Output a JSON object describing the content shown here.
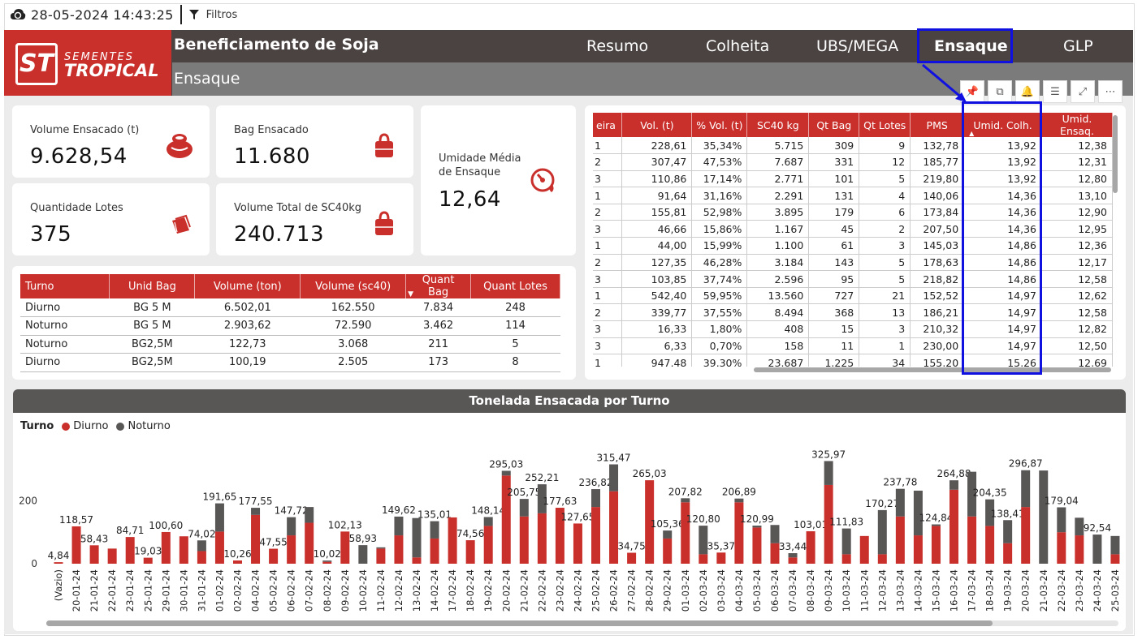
{
  "topbar": {
    "datetime": "28-05-2024 14:43:25",
    "filters_label": "Filtros"
  },
  "header": {
    "title": "Beneficiamento de Soja",
    "subtitle": "Ensaque",
    "logo_line1": "SEMENTES",
    "logo_line2": "TROPICAL",
    "logo_mark": "ST",
    "nav": [
      "Resumo",
      "Colheita",
      "UBS/MEGA",
      "Ensaque",
      "GLP"
    ],
    "active_nav": "Ensaque"
  },
  "kpis": {
    "volume_ensacado": {
      "label": "Volume Ensacado (t)",
      "value": "9.628,54"
    },
    "bag_ensacado": {
      "label": "Bag Ensacado",
      "value": "11.680"
    },
    "umidade_media": {
      "label": "Umidade Média de Ensaque",
      "value": "12,64"
    },
    "quantidade_lotes": {
      "label": "Quantidade Lotes",
      "value": "375"
    },
    "volume_total_sc40": {
      "label": "Volume Total de SC40kg",
      "value": "240.713"
    }
  },
  "turno_table": {
    "columns": [
      "Turno",
      "Unid Bag",
      "Volume (ton)",
      "Volume (sc40)",
      "Quant Bag",
      "Quant Lotes"
    ],
    "rows": [
      [
        "Diurno",
        "BG 5 M",
        "6.502,01",
        "162.550",
        "7.834",
        "248"
      ],
      [
        "Noturno",
        "BG 5 M",
        "2.903,62",
        "72.590",
        "3.462",
        "114"
      ],
      [
        "Noturno",
        "BG2,5M",
        "122,73",
        "3.068",
        "211",
        "5"
      ],
      [
        "Diurno",
        "BG2,5M",
        "100,19",
        "2.505",
        "173",
        "8"
      ]
    ]
  },
  "detail_table": {
    "columns": [
      "eira",
      "Vol. (t)",
      "% Vol. (t)",
      "SC40 kg",
      "Qt Bag",
      "Qt Lotes",
      "PMS",
      "Umid. Colh.",
      "Umid. Ensaq."
    ],
    "rows": [
      [
        "1",
        "228,61",
        "35,34%",
        "5.715",
        "309",
        "9",
        "132,78",
        "13,92",
        "12,38"
      ],
      [
        "2",
        "307,47",
        "47,53%",
        "7.687",
        "331",
        "12",
        "185,77",
        "13,92",
        "12,31"
      ],
      [
        "3",
        "110,86",
        "17,14%",
        "2.771",
        "101",
        "5",
        "219,80",
        "13,92",
        "12,80"
      ],
      [
        "1",
        "91,64",
        "31,16%",
        "2.291",
        "131",
        "4",
        "140,06",
        "14,36",
        "13,10"
      ],
      [
        "2",
        "155,81",
        "52,98%",
        "3.895",
        "179",
        "6",
        "173,84",
        "14,36",
        "12,90"
      ],
      [
        "3",
        "46,66",
        "15,86%",
        "1.167",
        "45",
        "2",
        "207,50",
        "14,36",
        "12,95"
      ],
      [
        "1",
        "44,00",
        "15,99%",
        "1.100",
        "61",
        "3",
        "145,03",
        "14,86",
        "12,36"
      ],
      [
        "2",
        "127,35",
        "46,28%",
        "3.184",
        "143",
        "5",
        "178,63",
        "14,86",
        "12,17"
      ],
      [
        "3",
        "103,85",
        "37,74%",
        "2.596",
        "95",
        "5",
        "218,82",
        "14,86",
        "12,58"
      ],
      [
        "1",
        "542,40",
        "59,95%",
        "13.560",
        "727",
        "21",
        "152,52",
        "14,97",
        "12,62"
      ],
      [
        "2",
        "339,77",
        "37,55%",
        "8.494",
        "368",
        "13",
        "186,21",
        "14,97",
        "12,58"
      ],
      [
        "3",
        "16,33",
        "1,80%",
        "408",
        "15",
        "3",
        "210,32",
        "14,97",
        "12,82"
      ],
      [
        "3",
        "6,33",
        "0,70%",
        "158",
        "11",
        "1",
        "230,00",
        "14,97",
        "12,50"
      ],
      [
        "1",
        "947,48",
        "39,30%",
        "23.687",
        "1.225",
        "34",
        "155,20",
        "15,26",
        "12,69"
      ]
    ]
  },
  "chart_title": "Tonelada Ensacada por Turno",
  "chart_data": {
    "type": "bar",
    "stacked": true,
    "legend_title": "Turno",
    "series_names": [
      "Diurno",
      "Noturno"
    ],
    "colors": {
      "Diurno": "#c9302c",
      "Noturno": "#595656"
    },
    "yticks": [
      0,
      200
    ],
    "ylim": [
      0,
      340
    ],
    "categories": [
      "(Vazio)",
      "20-01-24",
      "21-01-24",
      "22-01-24",
      "23-01-24",
      "25-01-24",
      "29-01-24",
      "30-01-24",
      "31-01-24",
      "01-02-24",
      "02-02-24",
      "04-02-24",
      "05-02-24",
      "06-02-24",
      "07-02-24",
      "08-02-24",
      "09-02-24",
      "10-02-24",
      "11-02-24",
      "12-02-24",
      "13-02-24",
      "14-02-24",
      "17-02-24",
      "18-02-24",
      "19-02-24",
      "20-02-24",
      "21-02-24",
      "22-02-24",
      "23-02-24",
      "24-02-24",
      "25-02-24",
      "26-02-24",
      "27-02-24",
      "28-02-24",
      "29-02-24",
      "01-03-24",
      "02-03-24",
      "03-03-24",
      "04-03-24",
      "05-03-24",
      "06-03-24",
      "07-03-24",
      "08-03-24",
      "09-03-24",
      "10-03-24",
      "11-03-24",
      "12-03-24",
      "13-03-24",
      "14-03-24",
      "15-03-24",
      "16-03-24",
      "17-03-24",
      "18-03-24",
      "19-03-24",
      "20-03-24",
      "21-03-24",
      "22-03-24",
      "23-03-24",
      "24-03-24",
      "25-03-24"
    ],
    "totals": [
      4.84,
      118.57,
      58.43,
      48,
      84.71,
      19.03,
      100.6,
      87,
      74.02,
      191.65,
      10.26,
      177.55,
      47.55,
      147.72,
      180,
      10.02,
      102.13,
      58.93,
      52,
      149.62,
      145,
      135.01,
      147,
      74.56,
      148.14,
      295.03,
      205.75,
      252.21,
      177.63,
      127.65,
      236.82,
      315.47,
      34.75,
      265.03,
      105.36,
      207.82,
      120.8,
      35.37,
      206.89,
      120.99,
      123,
      33.44,
      103.01,
      325.97,
      111.83,
      88,
      170.27,
      237.78,
      232,
      124.84,
      264.88,
      292,
      204.35,
      138.41,
      296.87,
      296,
      179.04,
      146,
      92.54,
      88
    ],
    "labels": [
      "4,84",
      "118,57",
      "58,43",
      "",
      "84,71",
      "19,03",
      "100,60",
      "",
      "74,02",
      "191,65",
      "10,26",
      "177,55",
      "47,55",
      "147,72",
      "",
      "10,02",
      "102,13",
      "58,93",
      "",
      "149,62",
      "",
      "135,01",
      "",
      "74,56",
      "148,14",
      "295,03",
      "205,75",
      "252,21",
      "177,63",
      "127,65",
      "236,82",
      "315,47",
      "34,75",
      "265,03",
      "105,36",
      "207,82",
      "120,80",
      "35,37",
      "206,89",
      "120,99",
      "",
      "33,44",
      "103,01",
      "325,97",
      "111,83",
      "",
      "170,27",
      "237,78",
      "",
      "124,84",
      "264,88",
      "",
      "204,35",
      "138,41",
      "296,87",
      "",
      "179,04",
      "",
      "92,54",
      ""
    ],
    "diurno": [
      4.84,
      118.57,
      58.43,
      48,
      84.71,
      19.03,
      100.6,
      87,
      40,
      102,
      10.26,
      155,
      47.55,
      90,
      130,
      6,
      102.13,
      0,
      48,
      90,
      20,
      80,
      147,
      74.56,
      120,
      280,
      150,
      160,
      177.63,
      127.65,
      180,
      230,
      34.75,
      265.03,
      80,
      195,
      30,
      35.37,
      195,
      115,
      65,
      20,
      103.01,
      250,
      30,
      88,
      30,
      150,
      90,
      120,
      235,
      150,
      120,
      65,
      180,
      0,
      100,
      90,
      0,
      30
    ]
  }
}
